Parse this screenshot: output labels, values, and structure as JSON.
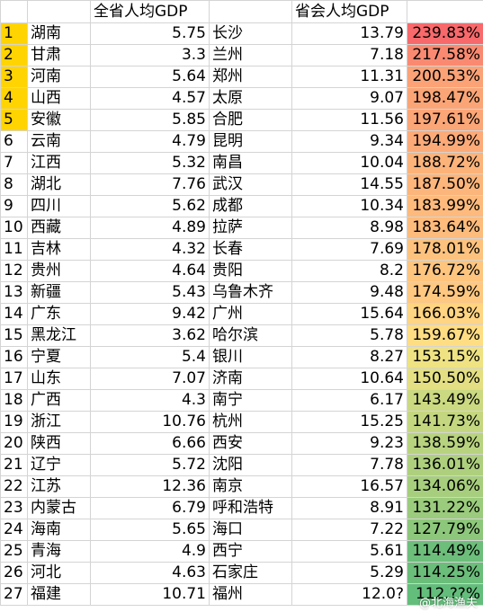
{
  "headers": {
    "province_gdp": "全省人均GDP",
    "capital_gdp": "省会人均GDP"
  },
  "rows": [
    {
      "rank": "1",
      "province": "湖南",
      "pgdp": "5.75",
      "city": "长沙",
      "cgdp": "13.79",
      "pct": "239.83%",
      "color": "#f8696b",
      "highlight": true
    },
    {
      "rank": "2",
      "province": "甘肃",
      "pgdp": "3.3",
      "city": "兰州",
      "cgdp": "7.18",
      "pct": "217.58%",
      "color": "#f98a71",
      "highlight": true
    },
    {
      "rank": "3",
      "province": "河南",
      "pgdp": "5.64",
      "city": "郑州",
      "cgdp": "11.31",
      "pct": "200.53%",
      "color": "#fba276",
      "highlight": true
    },
    {
      "rank": "4",
      "province": "山西",
      "pgdp": "4.57",
      "city": "太原",
      "cgdp": "9.07",
      "pct": "198.47%",
      "color": "#fba576",
      "highlight": true
    },
    {
      "rank": "5",
      "province": "安徽",
      "pgdp": "5.85",
      "city": "合肥",
      "cgdp": "11.56",
      "pct": "197.61%",
      "color": "#fba677",
      "highlight": true
    },
    {
      "rank": "6",
      "province": "云南",
      "pgdp": "4.79",
      "city": "昆明",
      "cgdp": "9.34",
      "pct": "194.99%",
      "color": "#fcaa78",
      "highlight": false
    },
    {
      "rank": "7",
      "province": "江西",
      "pgdp": "5.32",
      "city": "南昌",
      "cgdp": "10.04",
      "pct": "188.72%",
      "color": "#fcb37a",
      "highlight": false
    },
    {
      "rank": "8",
      "province": "湖北",
      "pgdp": "7.76",
      "city": "武汉",
      "cgdp": "14.55",
      "pct": "187.50%",
      "color": "#fcb57b",
      "highlight": false
    },
    {
      "rank": "9",
      "province": "四川",
      "pgdp": "5.62",
      "city": "成都",
      "cgdp": "10.34",
      "pct": "183.99%",
      "color": "#fdba7c",
      "highlight": false
    },
    {
      "rank": "10",
      "province": "西藏",
      "pgdp": "4.89",
      "city": "拉萨",
      "cgdp": "8.98",
      "pct": "183.64%",
      "color": "#fdbb7c",
      "highlight": false
    },
    {
      "rank": "11",
      "province": "吉林",
      "pgdp": "4.32",
      "city": "长春",
      "cgdp": "7.69",
      "pct": "178.01%",
      "color": "#fdc37e",
      "highlight": false
    },
    {
      "rank": "12",
      "province": "贵州",
      "pgdp": "4.64",
      "city": "贵阳",
      "cgdp": "8.2",
      "pct": "176.72%",
      "color": "#fec57f",
      "highlight": false
    },
    {
      "rank": "13",
      "province": "新疆",
      "pgdp": "5.43",
      "city": "乌鲁木齐",
      "cgdp": "9.48",
      "pct": "174.59%",
      "color": "#fec880",
      "highlight": false
    },
    {
      "rank": "14",
      "province": "广东",
      "pgdp": "9.42",
      "city": "广州",
      "cgdp": "15.64",
      "pct": "166.03%",
      "color": "#ffd482",
      "highlight": false
    },
    {
      "rank": "15",
      "province": "黑龙江",
      "pgdp": "3.62",
      "city": "哈尔滨",
      "cgdp": "5.78",
      "pct": "159.67%",
      "color": "#fedd83",
      "highlight": false
    },
    {
      "rank": "16",
      "province": "宁夏",
      "pgdp": "5.4",
      "city": "银川",
      "cgdp": "8.27",
      "pct": "153.15%",
      "color": "#eee283",
      "highlight": false
    },
    {
      "rank": "17",
      "province": "山东",
      "pgdp": "7.07",
      "city": "济南",
      "cgdp": "10.64",
      "pct": "150.50%",
      "color": "#e3df82",
      "highlight": false
    },
    {
      "rank": "18",
      "province": "广西",
      "pgdp": "4.3",
      "city": "南宁",
      "cgdp": "6.17",
      "pct": "143.49%",
      "color": "#cbd981",
      "highlight": false
    },
    {
      "rank": "19",
      "province": "浙江",
      "pgdp": "10.76",
      "city": "杭州",
      "cgdp": "15.25",
      "pct": "141.73%",
      "color": "#c4d780",
      "highlight": false
    },
    {
      "rank": "20",
      "province": "陕西",
      "pgdp": "6.66",
      "city": "西安",
      "cgdp": "9.23",
      "pct": "138.59%",
      "color": "#b8d37f",
      "highlight": false
    },
    {
      "rank": "21",
      "province": "辽宁",
      "pgdp": "5.72",
      "city": "沈阳",
      "cgdp": "7.78",
      "pct": "136.01%",
      "color": "#aed07e",
      "highlight": false
    },
    {
      "rank": "22",
      "province": "江苏",
      "pgdp": "12.36",
      "city": "南京",
      "cgdp": "16.57",
      "pct": "134.06%",
      "color": "#a6ce7d",
      "highlight": false
    },
    {
      "rank": "23",
      "province": "内蒙古",
      "pgdp": "6.79",
      "city": "呼和浩特",
      "cgdp": "8.91",
      "pct": "131.22%",
      "color": "#9bcb7c",
      "highlight": false
    },
    {
      "rank": "24",
      "province": "海南",
      "pgdp": "5.65",
      "city": "海口",
      "cgdp": "7.22",
      "pct": "127.79%",
      "color": "#8dc77b",
      "highlight": false
    },
    {
      "rank": "25",
      "province": "青海",
      "pgdp": "4.9",
      "city": "西宁",
      "cgdp": "5.61",
      "pct": "114.49%",
      "color": "#6cbe7a",
      "highlight": false
    },
    {
      "rank": "26",
      "province": "河北",
      "pgdp": "4.63",
      "city": "石家庄",
      "cgdp": "5.29",
      "pct": "114.25%",
      "color": "#6bbd7a",
      "highlight": false
    },
    {
      "rank": "27",
      "province": "福建",
      "pgdp": "10.71",
      "city": "福州",
      "cgdp": "12.0?",
      "pct": "112.??%",
      "color": "#63be7b",
      "highlight": false
    }
  ],
  "watermark": "@北海渔夫"
}
